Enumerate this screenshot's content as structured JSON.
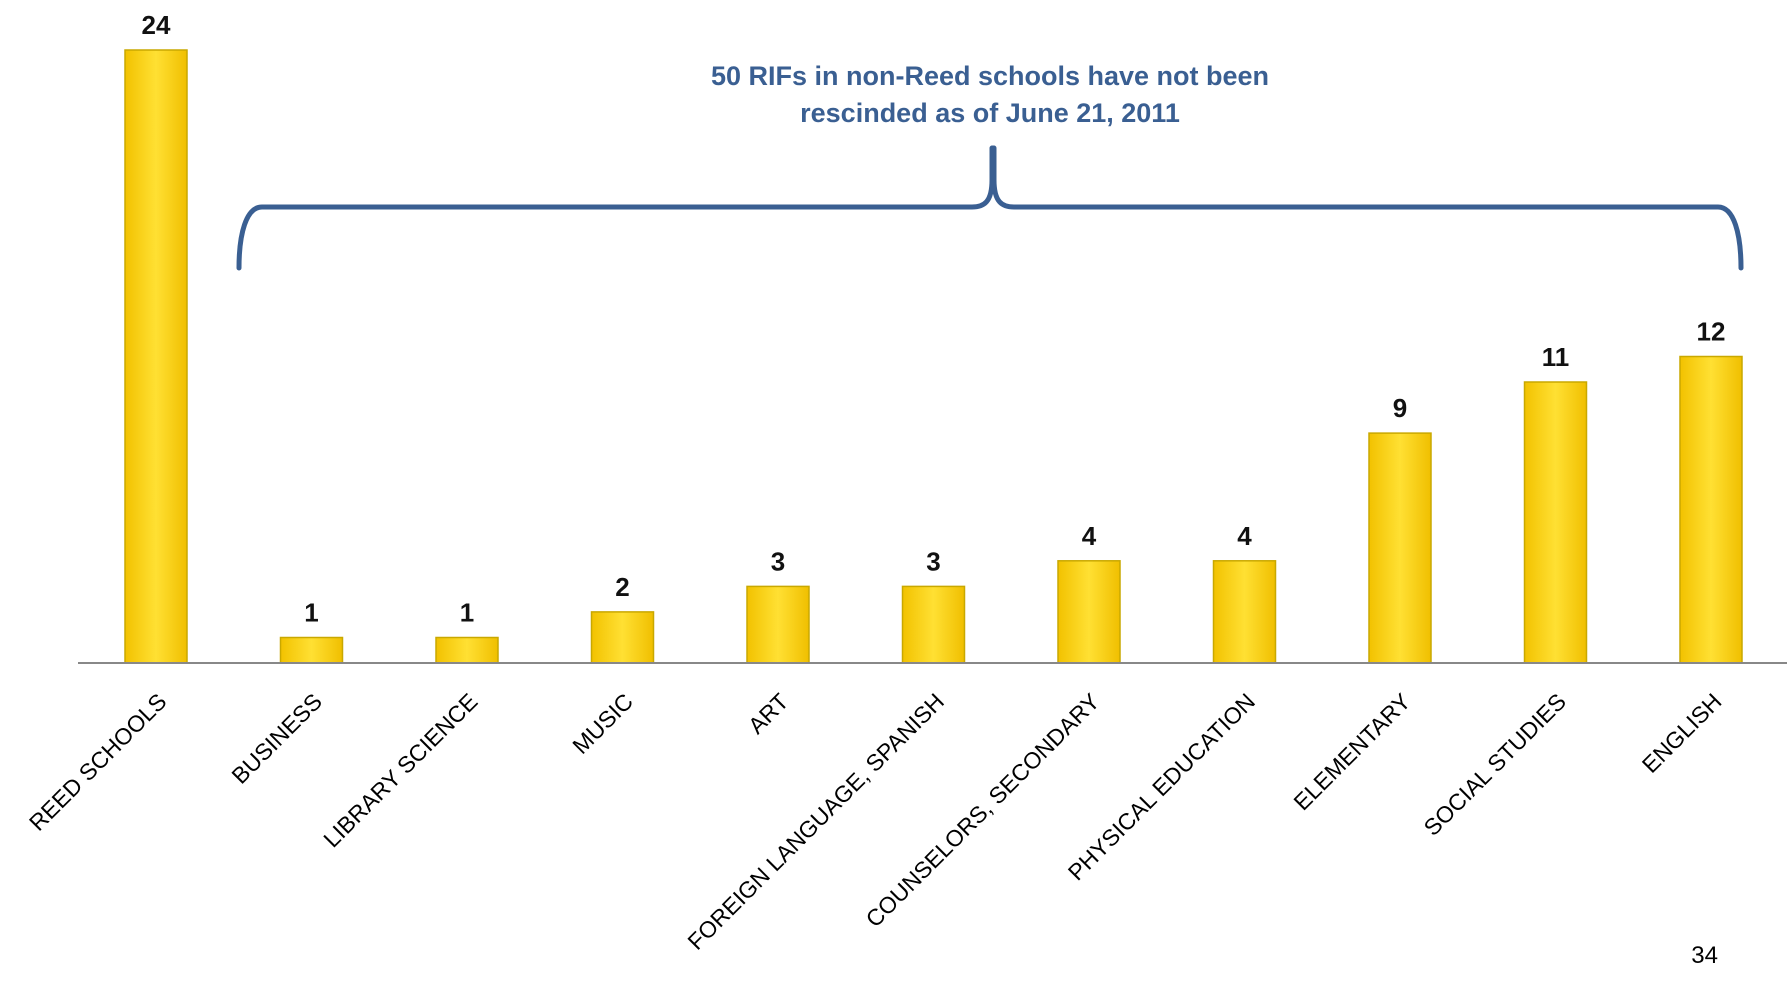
{
  "chart_data": {
    "type": "bar",
    "categories": [
      "REED SCHOOLS",
      "BUSINESS",
      "LIBRARY SCIENCE",
      "MUSIC",
      "ART",
      "FOREIGN LANGUAGE, SPANISH",
      "COUNSELORS, SECONDARY",
      "PHYSICAL EDUCATION",
      "ELEMENTARY",
      "SOCIAL STUDIES",
      "ENGLISH"
    ],
    "values": [
      24,
      1,
      1,
      2,
      3,
      3,
      4,
      4,
      9,
      11,
      12
    ],
    "ylim": [
      0,
      24
    ],
    "grid": false,
    "bar_color": "#ffd700",
    "bar_edge_color": "#c9a800",
    "annotation": {
      "line1": "50 RIFs in non-Reed schools have not been",
      "line2": "rescinded as of June 21, 2011",
      "color": "#3a5f92"
    }
  },
  "page_number": "34"
}
